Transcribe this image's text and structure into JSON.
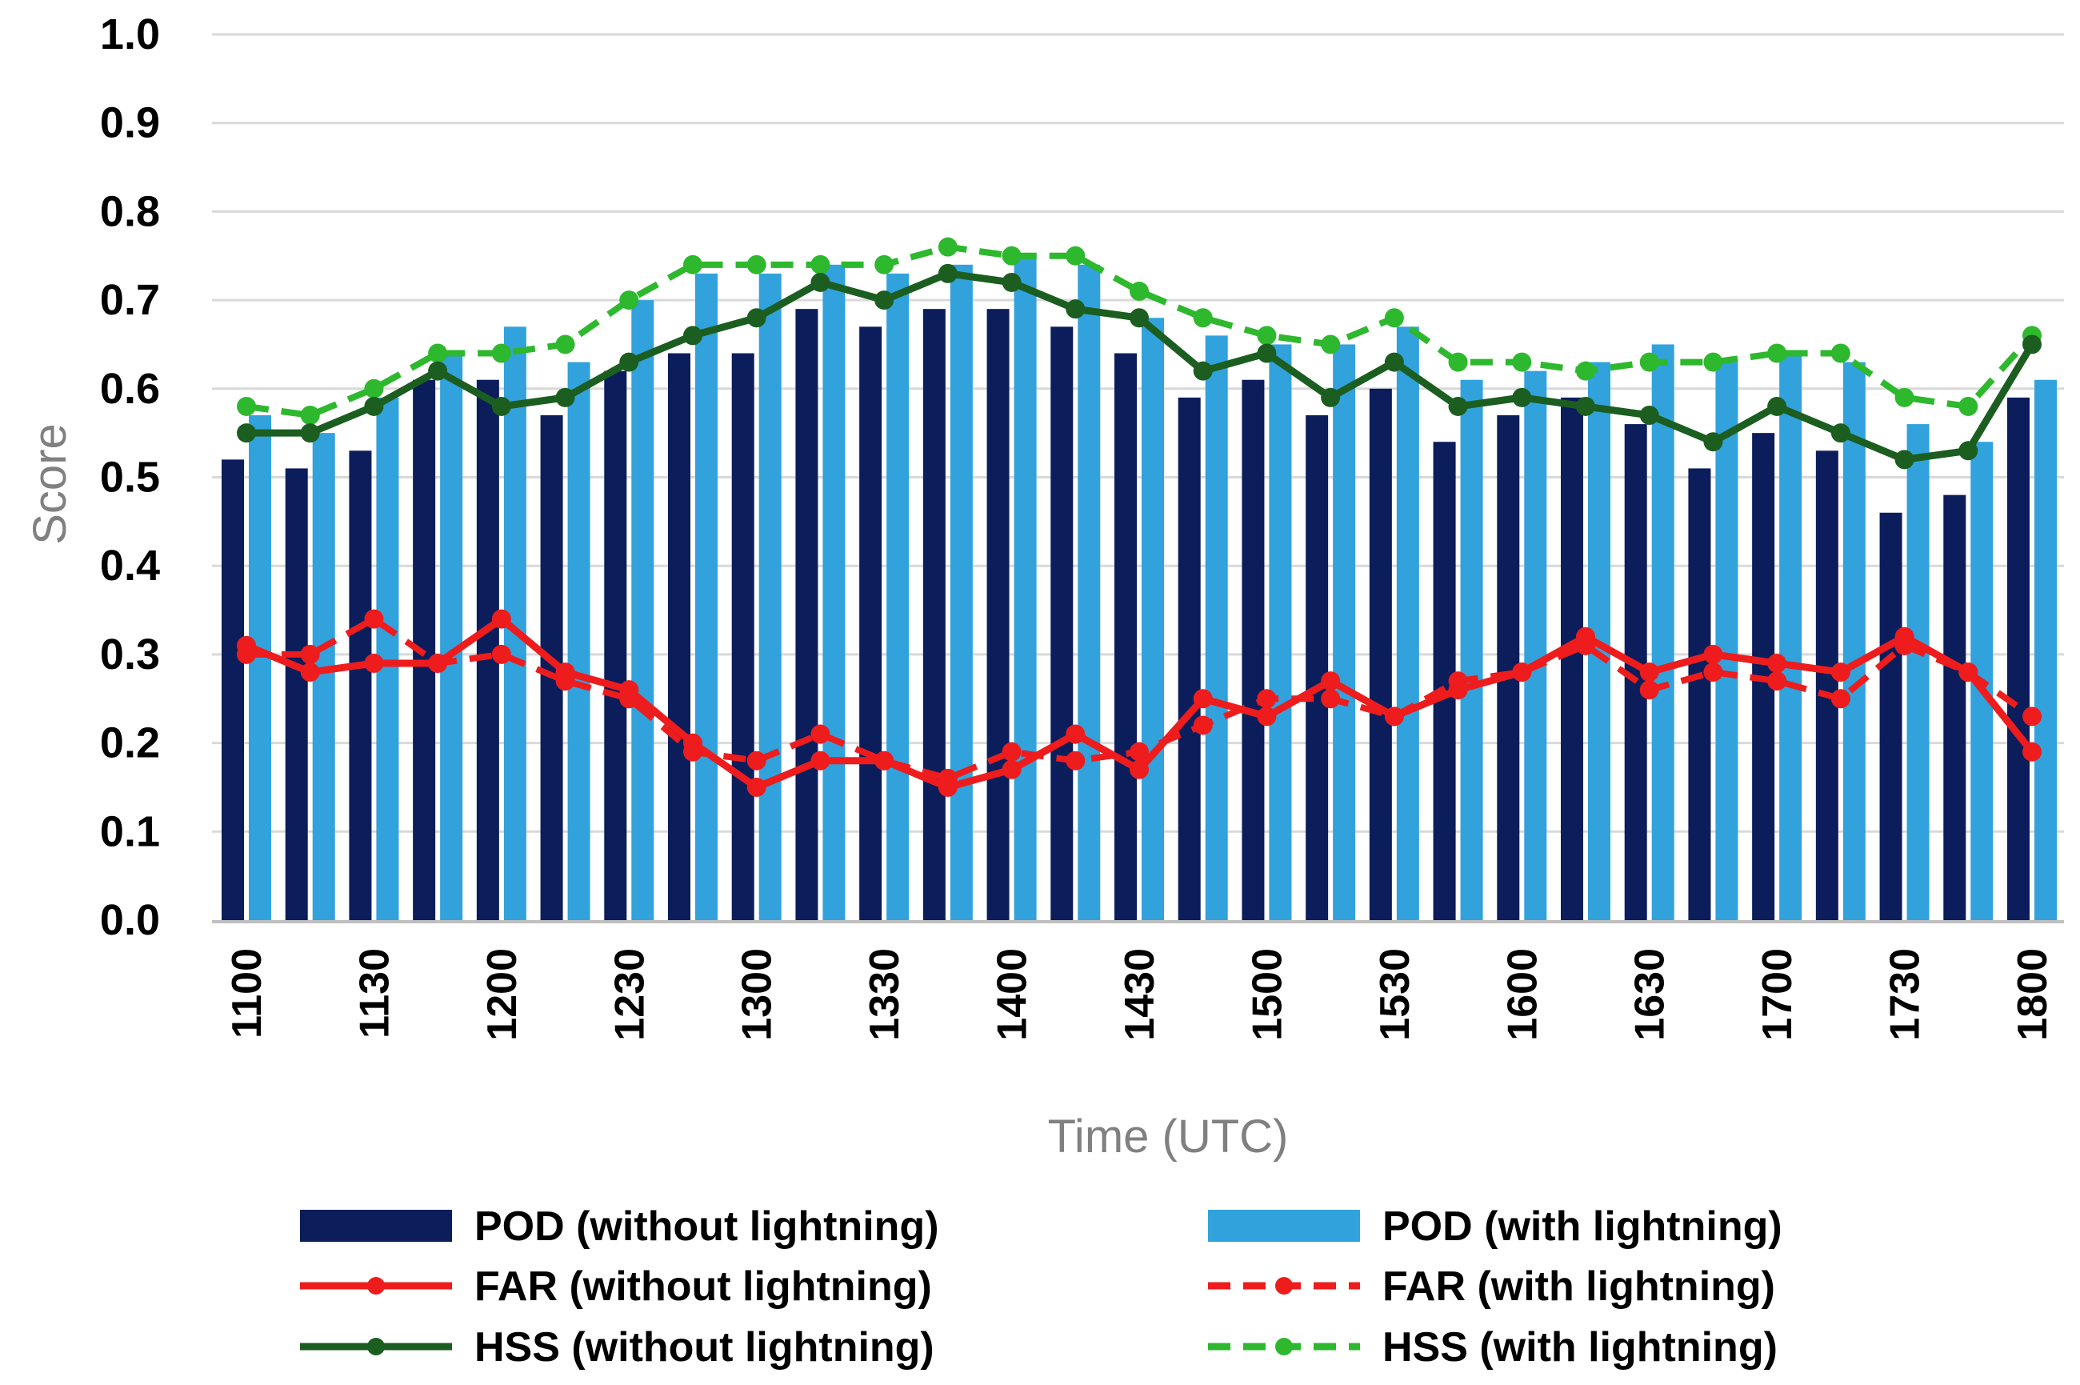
{
  "chart_data": {
    "type": "bar+line",
    "xlabel": "Time (UTC)",
    "ylabel": "Score",
    "ylim": [
      0,
      1
    ],
    "yticks": [
      "0.0",
      "0.1",
      "0.2",
      "0.3",
      "0.4",
      "0.5",
      "0.6",
      "0.7",
      "0.8",
      "0.9",
      "1.0"
    ],
    "grid": "horizontal",
    "legend_position": "bottom",
    "categories": [
      "1100",
      "1115",
      "1130",
      "1145",
      "1200",
      "1215",
      "1230",
      "1245",
      "1300",
      "1315",
      "1330",
      "1345",
      "1400",
      "1415",
      "1430",
      "1445",
      "1500",
      "1515",
      "1530",
      "1545",
      "1600",
      "1615",
      "1630",
      "1645",
      "1700",
      "1715",
      "1730",
      "1745",
      "1800"
    ],
    "tick_labels": [
      "1100",
      "1130",
      "1200",
      "1230",
      "1300",
      "1330",
      "1400",
      "1430",
      "1500",
      "1530",
      "1600",
      "1630",
      "1700",
      "1730",
      "1800"
    ],
    "colors": {
      "pod_without": "#0c1d5c",
      "pod_with": "#31a2dc",
      "far": "#ee1c1c",
      "hss_without": "#1b5e20",
      "hss_with": "#2db82d",
      "grid": "#d9d9d9",
      "axis": "#bfbfbf"
    },
    "series": [
      {
        "name": "POD (without lightning)",
        "type": "bar",
        "color_key": "pod_without",
        "values": [
          0.52,
          0.51,
          0.53,
          0.61,
          0.61,
          0.57,
          0.62,
          0.64,
          0.64,
          0.69,
          0.67,
          0.69,
          0.69,
          0.67,
          0.64,
          0.59,
          0.61,
          0.57,
          0.6,
          0.54,
          0.57,
          0.59,
          0.56,
          0.51,
          0.55,
          0.53,
          0.46,
          0.48,
          0.59
        ]
      },
      {
        "name": "POD (with lightning)",
        "type": "bar",
        "color_key": "pod_with",
        "values": [
          0.57,
          0.55,
          0.59,
          0.64,
          0.67,
          0.63,
          0.7,
          0.73,
          0.73,
          0.74,
          0.73,
          0.74,
          0.75,
          0.74,
          0.68,
          0.66,
          0.65,
          0.65,
          0.67,
          0.61,
          0.62,
          0.63,
          0.65,
          0.63,
          0.64,
          0.63,
          0.56,
          0.54,
          0.61
        ]
      },
      {
        "name": "FAR (without lightning)",
        "type": "line",
        "color_key": "far",
        "dash": false,
        "values": [
          0.31,
          0.28,
          0.29,
          0.29,
          0.34,
          0.28,
          0.26,
          0.2,
          0.15,
          0.18,
          0.18,
          0.15,
          0.17,
          0.21,
          0.17,
          0.25,
          0.23,
          0.27,
          0.23,
          0.26,
          0.28,
          0.32,
          0.28,
          0.3,
          0.29,
          0.28,
          0.32,
          0.28,
          0.19
        ]
      },
      {
        "name": "FAR (with lightning)",
        "type": "line",
        "color_key": "far",
        "dash": true,
        "values": [
          0.3,
          0.3,
          0.34,
          0.29,
          0.3,
          0.27,
          0.25,
          0.19,
          0.18,
          0.21,
          0.18,
          0.16,
          0.19,
          0.18,
          0.19,
          0.22,
          0.25,
          0.25,
          0.23,
          0.27,
          0.28,
          0.31,
          0.26,
          0.28,
          0.27,
          0.25,
          0.31,
          0.28,
          0.23
        ]
      },
      {
        "name": "HSS (without lightning)",
        "type": "line",
        "color_key": "hss_without",
        "dash": false,
        "values": [
          0.55,
          0.55,
          0.58,
          0.62,
          0.58,
          0.59,
          0.63,
          0.66,
          0.68,
          0.72,
          0.7,
          0.73,
          0.72,
          0.69,
          0.68,
          0.62,
          0.64,
          0.59,
          0.63,
          0.58,
          0.59,
          0.58,
          0.57,
          0.54,
          0.58,
          0.55,
          0.52,
          0.53,
          0.65
        ]
      },
      {
        "name": "HSS (with lightning)",
        "type": "line",
        "color_key": "hss_with",
        "dash": true,
        "values": [
          0.58,
          0.57,
          0.6,
          0.64,
          0.64,
          0.65,
          0.7,
          0.74,
          0.74,
          0.74,
          0.74,
          0.76,
          0.75,
          0.75,
          0.71,
          0.68,
          0.66,
          0.65,
          0.68,
          0.63,
          0.63,
          0.62,
          0.63,
          0.63,
          0.64,
          0.64,
          0.59,
          0.58,
          0.66
        ]
      }
    ],
    "legend": [
      {
        "label": "POD (without lightning)",
        "series_index": 0
      },
      {
        "label": "POD (with lightning)",
        "series_index": 1
      },
      {
        "label": "FAR (without lightning)",
        "series_index": 2
      },
      {
        "label": "FAR (with lightning)",
        "series_index": 3
      },
      {
        "label": "HSS (without lightning)",
        "series_index": 4
      },
      {
        "label": "HSS (with lightning)",
        "series_index": 5
      }
    ]
  }
}
